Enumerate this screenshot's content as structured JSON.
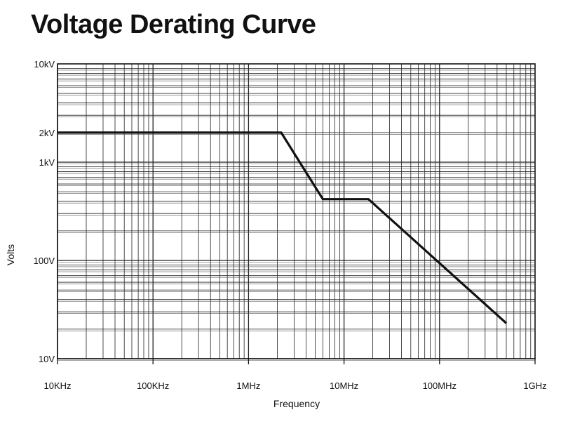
{
  "chart_data": {
    "type": "line",
    "title": "Voltage Derating Curve",
    "xlabel": "Frequency",
    "ylabel": "Volts",
    "x_scale": "log",
    "y_scale": "log",
    "xlim": [
      10000,
      1000000000
    ],
    "ylim": [
      10,
      10000
    ],
    "x_ticks": [
      {
        "value": 10000,
        "label": "10KHz"
      },
      {
        "value": 100000,
        "label": "100KHz"
      },
      {
        "value": 1000000,
        "label": "1MHz"
      },
      {
        "value": 10000000,
        "label": "10MHz"
      },
      {
        "value": 100000000,
        "label": "100MHz"
      },
      {
        "value": 1000000000,
        "label": "1GHz"
      }
    ],
    "y_ticks": [
      {
        "value": 10,
        "label": "10V"
      },
      {
        "value": 100,
        "label": "100V"
      },
      {
        "value": 1000,
        "label": "1kV"
      },
      {
        "value": 2000,
        "label": "2kV"
      },
      {
        "value": 10000,
        "label": "10kV"
      }
    ],
    "grid": true,
    "series": [
      {
        "color": "#111111",
        "points": [
          {
            "x": 10000,
            "y": 2000
          },
          {
            "x": 2200000,
            "y": 2000
          },
          {
            "x": 6000000,
            "y": 420
          },
          {
            "x": 18000000,
            "y": 420
          },
          {
            "x": 500000000,
            "y": 23
          }
        ]
      }
    ]
  }
}
